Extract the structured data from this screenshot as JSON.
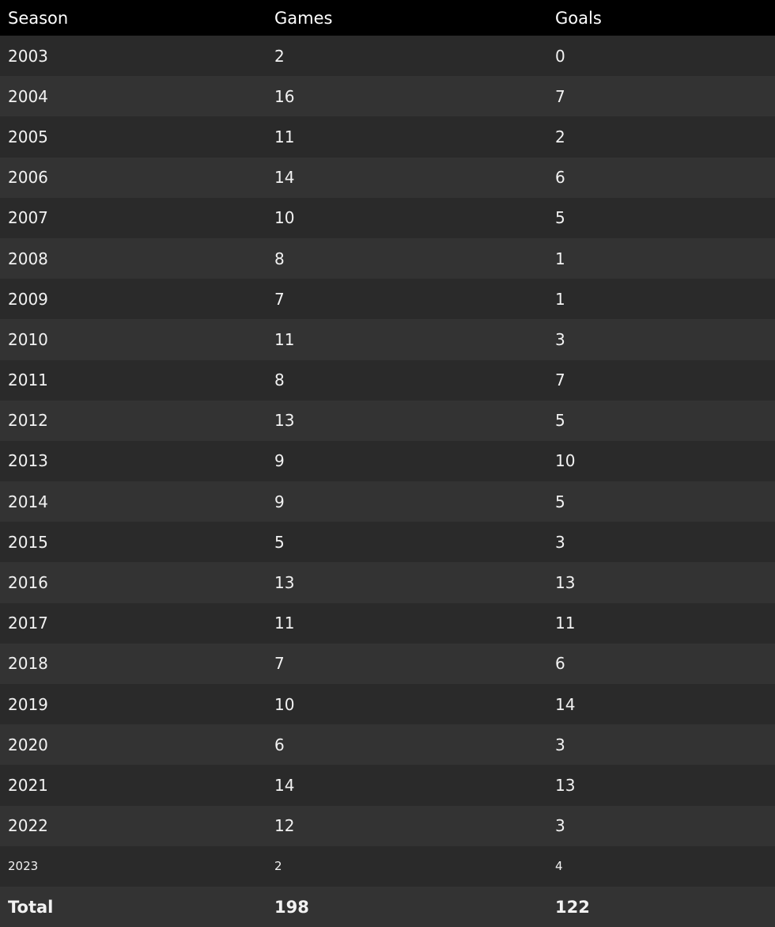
{
  "table": {
    "headers": [
      "Season",
      "Games",
      "Goals"
    ],
    "rows": [
      [
        "2003",
        "2",
        "0"
      ],
      [
        "2004",
        "16",
        "7"
      ],
      [
        "2005",
        "11",
        "2"
      ],
      [
        "2006",
        "14",
        "6"
      ],
      [
        "2007",
        "10",
        "5"
      ],
      [
        "2008",
        "8",
        "1"
      ],
      [
        "2009",
        "7",
        "1"
      ],
      [
        "2010",
        "11",
        "3"
      ],
      [
        "2011",
        "8",
        "7"
      ],
      [
        "2012",
        "13",
        "5"
      ],
      [
        "2013",
        "9",
        "10"
      ],
      [
        "2014",
        "9",
        "5"
      ],
      [
        "2015",
        "5",
        "3"
      ],
      [
        "2016",
        "13",
        "13"
      ],
      [
        "2017",
        "11",
        "11"
      ],
      [
        "2018",
        "7",
        "6"
      ],
      [
        "2019",
        "10",
        "14"
      ],
      [
        "2020",
        "6",
        "3"
      ],
      [
        "2021",
        "14",
        "13"
      ],
      [
        "2022",
        "12",
        "3"
      ],
      [
        "2023",
        "2",
        "4"
      ]
    ],
    "total": [
      "Total",
      "198",
      "122"
    ]
  },
  "colors": {
    "header_bg": "#000000",
    "row_odd": "#2a2a2a",
    "row_even": "#333333",
    "text": "#f2f2f2"
  }
}
